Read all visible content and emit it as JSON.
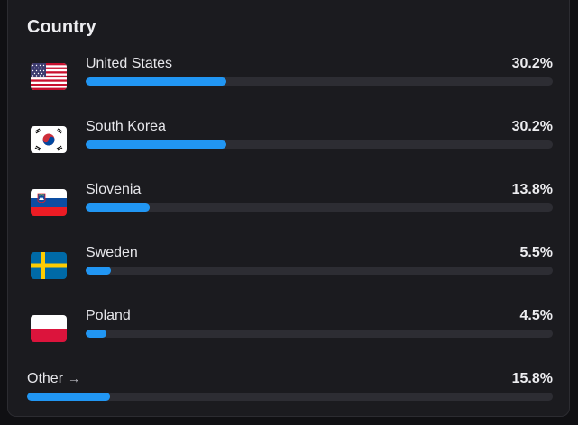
{
  "card": {
    "title": "Country"
  },
  "countries": [
    {
      "flag": "us-flag-icon",
      "name": "United States",
      "percent_label": "30.2%",
      "fraction": 0.302
    },
    {
      "flag": "south-korea-flag-icon",
      "name": "South Korea",
      "percent_label": "30.2%",
      "fraction": 0.302
    },
    {
      "flag": "slovenia-flag-icon",
      "name": "Slovenia",
      "percent_label": "13.8%",
      "fraction": 0.138
    },
    {
      "flag": "sweden-flag-icon",
      "name": "Sweden",
      "percent_label": "5.5%",
      "fraction": 0.055
    },
    {
      "flag": "poland-flag-icon",
      "name": "Poland",
      "percent_label": "4.5%",
      "fraction": 0.045
    }
  ],
  "other": {
    "label": "Other",
    "arrow_icon": "arrow-right-icon",
    "arrow": "→",
    "percent_label": "15.8%",
    "fraction": 0.158
  },
  "colors": {
    "background": "#101013",
    "card": "#1b1b1f",
    "bar_fill": "#2196f3",
    "bar_track": "#2d2d33",
    "text": "#e6e6ea"
  }
}
